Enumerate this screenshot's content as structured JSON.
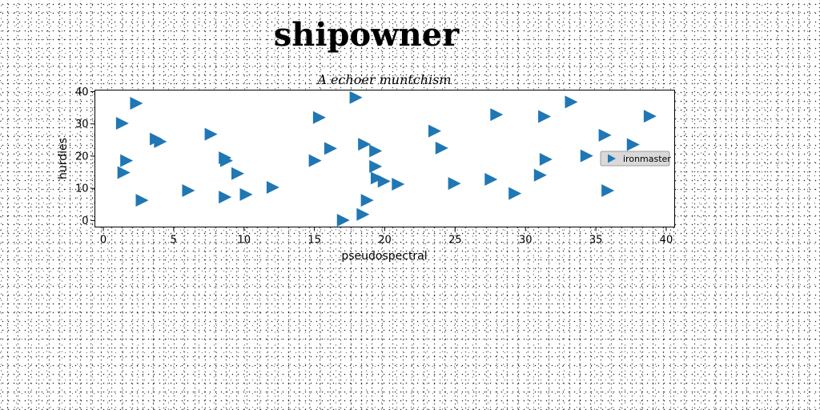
{
  "suptitle": "shipowner",
  "chart_data": {
    "type": "scatter",
    "title": "A echoer muntchism",
    "xlabel": "pseudospectral",
    "ylabel": "hurdies",
    "xlim": [
      -0.6,
      40.6
    ],
    "ylim": [
      -2,
      40.5
    ],
    "xticks": [
      0,
      5,
      10,
      15,
      20,
      25,
      30,
      35,
      40
    ],
    "yticks": [
      0,
      10,
      20,
      30,
      40
    ],
    "grid": false,
    "legend_position": "center-right",
    "series": [
      {
        "name": "ironmaster",
        "marker": "triangle-right",
        "color": "#1f77b4",
        "points": [
          {
            "x": 2.3,
            "y": 36.4
          },
          {
            "x": 1.3,
            "y": 30.2
          },
          {
            "x": 1.6,
            "y": 18.6
          },
          {
            "x": 1.4,
            "y": 14.9
          },
          {
            "x": 2.7,
            "y": 6.3
          },
          {
            "x": 3.7,
            "y": 25.3
          },
          {
            "x": 4.0,
            "y": 24.5
          },
          {
            "x": 6.0,
            "y": 9.3
          },
          {
            "x": 7.6,
            "y": 26.8
          },
          {
            "x": 8.6,
            "y": 19.5
          },
          {
            "x": 8.7,
            "y": 18.6
          },
          {
            "x": 9.5,
            "y": 14.6
          },
          {
            "x": 8.6,
            "y": 7.3
          },
          {
            "x": 10.1,
            "y": 8.1
          },
          {
            "x": 12.0,
            "y": 10.3
          },
          {
            "x": 15.3,
            "y": 32.0
          },
          {
            "x": 15.0,
            "y": 18.6
          },
          {
            "x": 16.1,
            "y": 22.4
          },
          {
            "x": 17.9,
            "y": 38.2
          },
          {
            "x": 18.5,
            "y": 23.7
          },
          {
            "x": 19.3,
            "y": 21.6
          },
          {
            "x": 19.3,
            "y": 16.8
          },
          {
            "x": 19.4,
            "y": 13.2
          },
          {
            "x": 19.9,
            "y": 12.2
          },
          {
            "x": 20.9,
            "y": 11.3
          },
          {
            "x": 18.7,
            "y": 6.3
          },
          {
            "x": 18.4,
            "y": 1.9
          },
          {
            "x": 17.0,
            "y": 0.1
          },
          {
            "x": 23.5,
            "y": 27.8
          },
          {
            "x": 24.0,
            "y": 22.5
          },
          {
            "x": 24.9,
            "y": 11.5
          },
          {
            "x": 27.9,
            "y": 32.9
          },
          {
            "x": 27.5,
            "y": 12.8
          },
          {
            "x": 29.2,
            "y": 8.4
          },
          {
            "x": 31.3,
            "y": 32.3
          },
          {
            "x": 31.4,
            "y": 19.0
          },
          {
            "x": 31.0,
            "y": 14.1
          },
          {
            "x": 33.2,
            "y": 36.8
          },
          {
            "x": 34.3,
            "y": 20.1
          },
          {
            "x": 35.6,
            "y": 26.5
          },
          {
            "x": 35.8,
            "y": 9.3
          },
          {
            "x": 37.6,
            "y": 23.6
          },
          {
            "x": 38.8,
            "y": 32.4
          }
        ]
      }
    ]
  }
}
